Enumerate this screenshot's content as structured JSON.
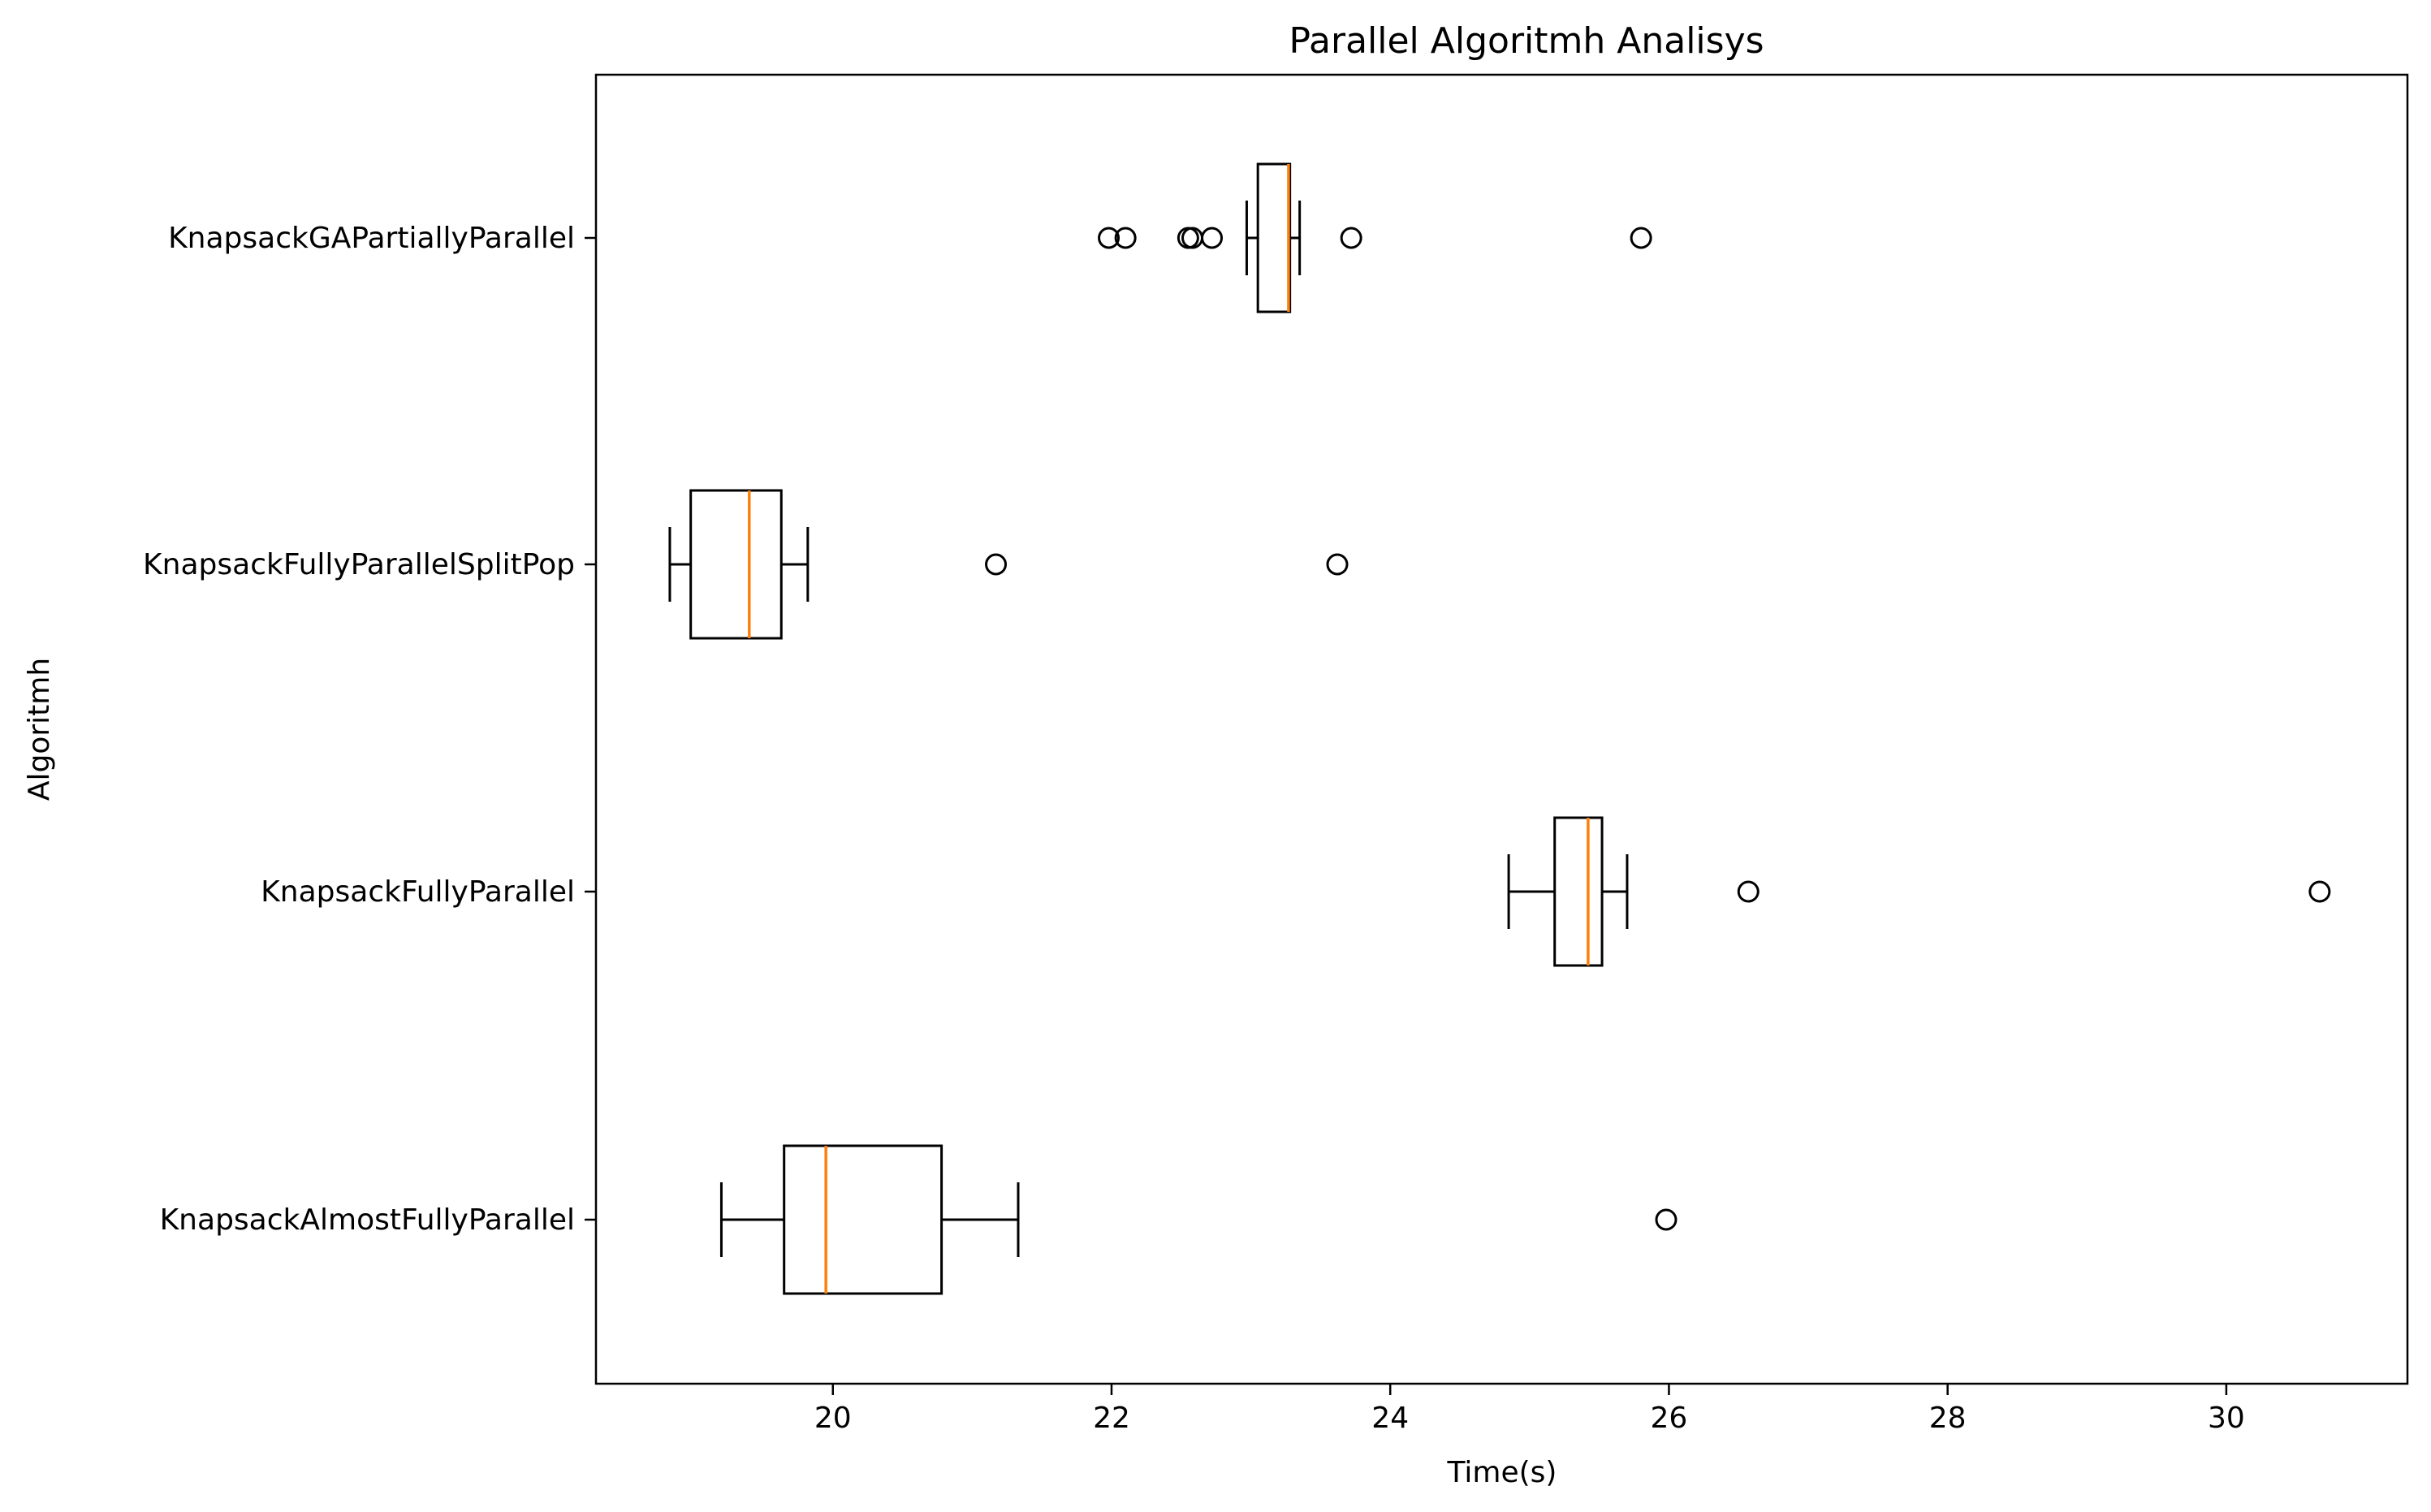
{
  "chart_data": {
    "type": "boxplot",
    "orientation": "horizontal",
    "title": "Parallel Algoritmh Analisys",
    "xlabel": "Time(s)",
    "ylabel": "Algoritmh",
    "xlim": [
      18.3,
      31.3
    ],
    "xticks": [
      20,
      22,
      24,
      26,
      28,
      30
    ],
    "xtick_labels": [
      "20",
      "22",
      "24",
      "26",
      "28",
      "30"
    ],
    "grid": false,
    "categories": [
      "KnapsackAlmostFullyParallel",
      "KnapsackFullyParallel",
      "KnapsackFullyParallelSplitPop",
      "KnapsackGAPartiallyParallel"
    ],
    "series": [
      {
        "category": "KnapsackAlmostFullyParallel",
        "whisker_low": 19.2,
        "q1": 19.65,
        "median": 19.95,
        "q3": 20.78,
        "whisker_high": 21.33,
        "outliers": [
          25.98
        ]
      },
      {
        "category": "KnapsackFullyParallel",
        "whisker_low": 24.85,
        "q1": 25.18,
        "median": 25.42,
        "q3": 25.52,
        "whisker_high": 25.7,
        "outliers": [
          26.57,
          30.67
        ]
      },
      {
        "category": "KnapsackFullyParallelSplitPop",
        "whisker_low": 18.83,
        "q1": 18.98,
        "median": 19.4,
        "q3": 19.63,
        "whisker_high": 19.82,
        "outliers": [
          21.17,
          23.62
        ]
      },
      {
        "category": "KnapsackGAPartiallyParallel",
        "whisker_low": 22.97,
        "q1": 23.05,
        "median": 23.27,
        "q3": 23.28,
        "whisker_high": 23.35,
        "outliers": [
          21.98,
          22.1,
          22.55,
          22.58,
          22.72,
          23.72,
          25.8
        ]
      }
    ],
    "colors": {
      "box": "#000000",
      "median": "#ff7f0e",
      "outlier": "#000000"
    }
  }
}
